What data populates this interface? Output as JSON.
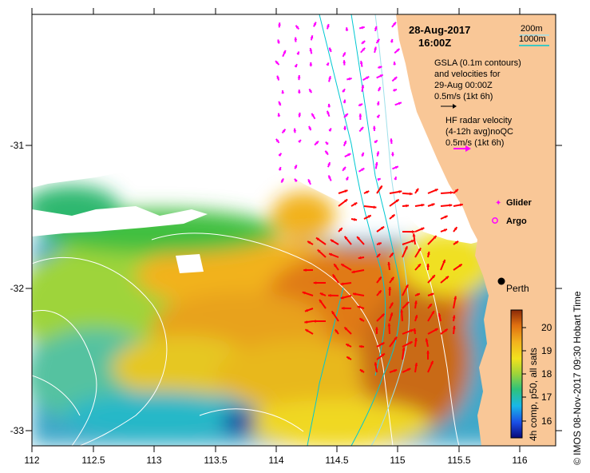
{
  "map": {
    "date": "28-Aug-2017",
    "time": "16:00Z",
    "depth_legend": [
      "200m",
      "1000m"
    ],
    "gsla_legend": [
      "GSLA (0.1m contours)",
      "and velocities for",
      "29-Aug 00:00Z",
      "0.5m/s (1kt 6h)"
    ],
    "radar_legend": [
      "HF radar velocity",
      "(4-12h avg)noQC",
      "0.5m/s (1kt 6h)"
    ],
    "glider_label": "Glider",
    "argo_label": "Argo",
    "city_label": "Perth",
    "colorbar_title": "4h comp, p50, all sats",
    "colorbar_ticks": [
      "16",
      "17",
      "18",
      "19",
      "20"
    ],
    "credit": "© IMOS 08-Nov-2017 09:30 Hobart Time",
    "x_ticks": [
      "112",
      "112.5",
      "113",
      "113.5",
      "114",
      "114.5",
      "115",
      "115.5",
      "116"
    ],
    "y_ticks": [
      "-31",
      "-32",
      "-33"
    ],
    "colors": {
      "land": "#f9c797",
      "radar_arrow": "#ff0000",
      "gsla_arrow": "#ff00ff",
      "depth_200": "#9fe0ea",
      "depth_1000": "#00c8d2",
      "legend_radar": "#ff00ff"
    }
  }
}
